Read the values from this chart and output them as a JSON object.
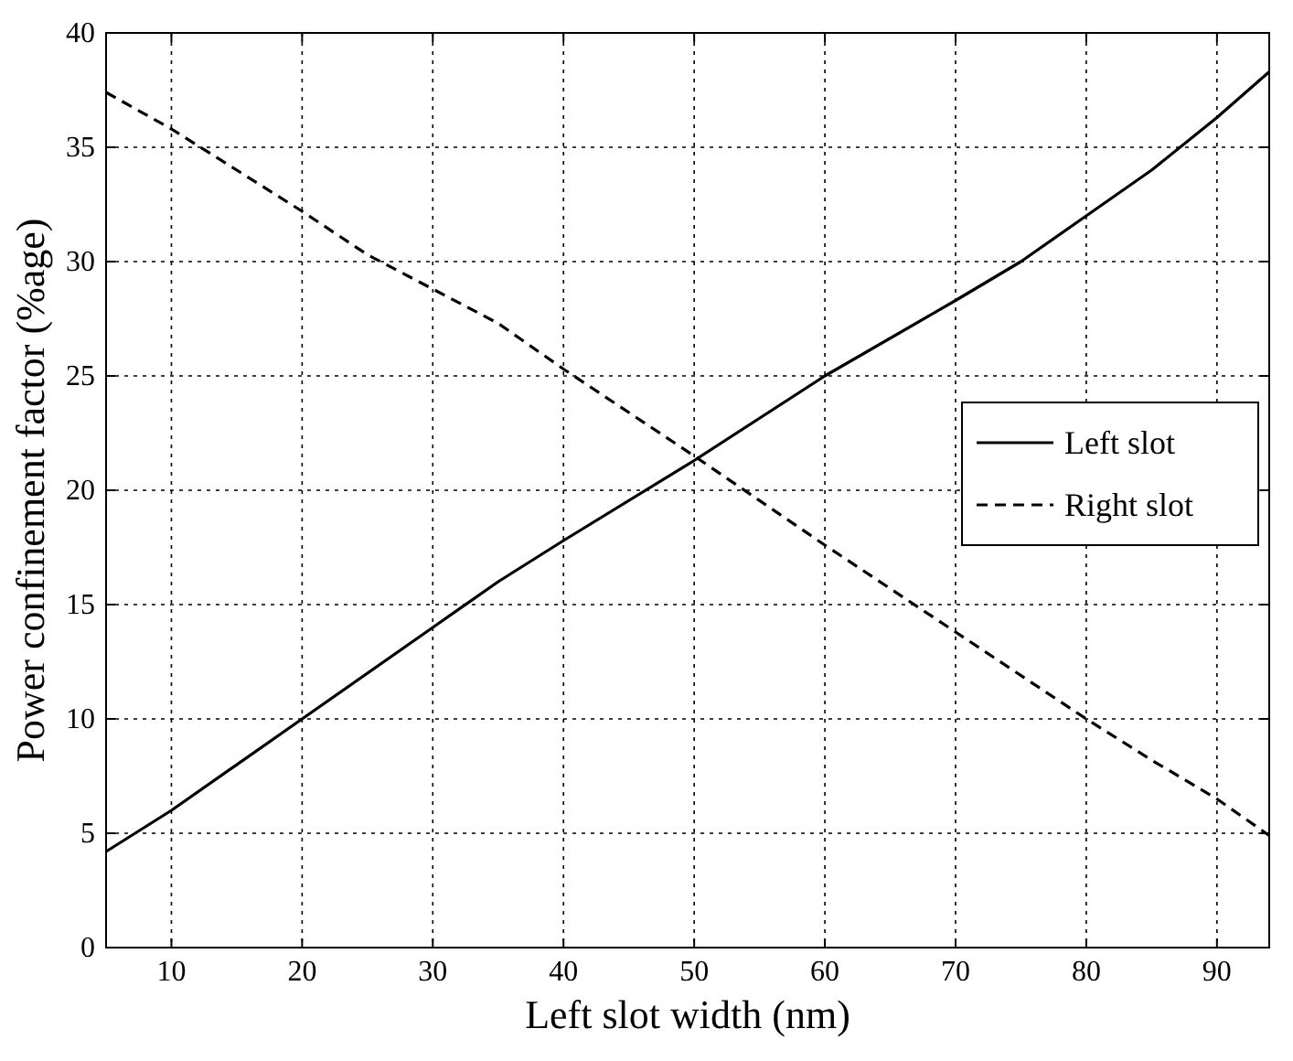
{
  "chart_data": {
    "type": "line",
    "xlabel": "Left slot width (nm)",
    "ylabel": "Power confinement factor (%age)",
    "xlim": [
      5,
      94
    ],
    "xticks": [
      10,
      20,
      30,
      40,
      50,
      60,
      70,
      80,
      90
    ],
    "ylim": [
      0,
      40
    ],
    "yticks": [
      0,
      5,
      10,
      15,
      20,
      25,
      30,
      35,
      40
    ],
    "grid": true,
    "legend": "right",
    "series": [
      {
        "name": "Left slot",
        "color": "#000000",
        "line_style": "solid",
        "x": [
          5,
          10,
          20,
          30,
          35,
          40,
          50,
          60,
          70,
          75,
          80,
          85,
          90,
          94
        ],
        "values": [
          4.2,
          6,
          10,
          14,
          16,
          17.8,
          21.3,
          25,
          28.3,
          30,
          32,
          34,
          36.3,
          38.3
        ]
      },
      {
        "name": "Right slot",
        "color": "#000000",
        "line_style": "dashed",
        "x": [
          5,
          10,
          20,
          25,
          30,
          35,
          40,
          50,
          60,
          70,
          80,
          85,
          90,
          94
        ],
        "values": [
          37.4,
          35.8,
          32.2,
          30.3,
          28.8,
          27.3,
          25.3,
          21.5,
          17.6,
          13.8,
          10,
          8.2,
          6.5,
          4.9
        ]
      }
    ]
  }
}
